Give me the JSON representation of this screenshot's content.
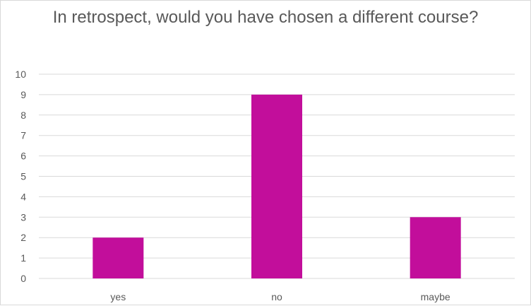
{
  "chart_data": {
    "type": "bar",
    "title": "In retrospect, would you have chosen a different course?",
    "categories": [
      "yes",
      "no",
      "maybe"
    ],
    "values": [
      2,
      9,
      3
    ],
    "ylim": [
      0,
      10
    ],
    "yticks": [
      0,
      1,
      2,
      3,
      4,
      5,
      6,
      7,
      8,
      9,
      10
    ],
    "grid": true,
    "legend": "none",
    "colors": {
      "bar": "#c20e9b",
      "grid": "#d9d9d9",
      "axis": "#d9d9d9",
      "text": "#595959"
    }
  }
}
